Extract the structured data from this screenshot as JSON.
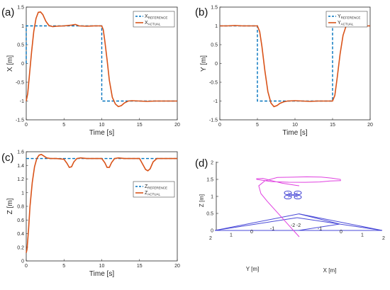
{
  "colors": {
    "reference": "#0072BD",
    "actual": "#D95319",
    "axis": "#262626",
    "frame_3d": "#4a4ad8",
    "path_3d": "#e040e0"
  },
  "chart_data": [
    {
      "id": "a",
      "panel_label": "(a)",
      "type": "line",
      "xlabel": "Time [s]",
      "ylabel": "X [m]",
      "xlim": [
        0,
        20
      ],
      "ylim": [
        -1.5,
        1.5
      ],
      "xticks": [
        0,
        5,
        10,
        15,
        20
      ],
      "yticks": [
        -1.5,
        -1,
        -0.5,
        0,
        0.5,
        1,
        1.5
      ],
      "xtick_labels": [
        "0",
        "5",
        "10",
        "15",
        "20"
      ],
      "ytick_labels": [
        "-1.5",
        "-1",
        "-0.5",
        "0",
        "0.5",
        "1",
        "1.5"
      ],
      "legend": {
        "placement": "top-right",
        "reference": {
          "main": "X",
          "sub": "REFERENCE"
        },
        "actual": {
          "main": "X",
          "sub": "ACTUAL"
        }
      },
      "series": [
        {
          "name": "X_REFERENCE",
          "style": "dashed",
          "x": [
            0,
            0,
            10,
            10,
            20
          ],
          "y": [
            0,
            1,
            1,
            -1,
            -1
          ]
        },
        {
          "name": "X_ACTUAL",
          "style": "solid",
          "x": [
            0,
            0.2,
            0.4,
            0.7,
            1.0,
            1.3,
            1.6,
            1.9,
            2.2,
            2.6,
            3.0,
            3.5,
            4.0,
            5.0,
            6.0,
            6.5,
            7.0,
            8.0,
            9.0,
            10.0,
            10.2,
            10.4,
            10.7,
            11.0,
            11.4,
            11.8,
            12.2,
            12.6,
            13.0,
            13.5,
            14.0,
            15.0,
            16.0,
            17.0,
            18.0,
            19.0,
            20.0
          ],
          "y": [
            -1.0,
            -0.8,
            -0.35,
            0.3,
            0.85,
            1.2,
            1.36,
            1.37,
            1.3,
            1.12,
            1.01,
            0.98,
            0.99,
            1.0,
            1.02,
            1.04,
            1.0,
            0.99,
            1.0,
            1.0,
            0.9,
            0.6,
            0.1,
            -0.45,
            -0.9,
            -1.08,
            -1.15,
            -1.12,
            -1.05,
            -1.0,
            -0.99,
            -1.0,
            -1.01,
            -1.0,
            -1.0,
            -1.0,
            -1.0
          ]
        }
      ]
    },
    {
      "id": "b",
      "panel_label": "(b)",
      "type": "line",
      "xlabel": "Time [s]",
      "ylabel": "Y [m]",
      "xlim": [
        0,
        20
      ],
      "ylim": [
        -1.5,
        1.5
      ],
      "xticks": [
        0,
        5,
        10,
        15,
        20
      ],
      "yticks": [
        -1.5,
        -1,
        -0.5,
        0,
        0.5,
        1,
        1.5
      ],
      "xtick_labels": [
        "0",
        "5",
        "10",
        "15",
        "20"
      ],
      "ytick_labels": [
        "-1.5",
        "-1",
        "-0.5",
        "0",
        "0.5",
        "1",
        "1.5"
      ],
      "legend": {
        "placement": "top-right",
        "reference": {
          "main": "Y",
          "sub": "REFERENCE"
        },
        "actual": {
          "main": "Y",
          "sub": "ACTUAL"
        }
      },
      "series": [
        {
          "name": "Y_REFERENCE",
          "style": "dashed",
          "x": [
            0,
            5,
            5,
            15,
            15,
            20
          ],
          "y": [
            1,
            1,
            -1,
            -1,
            1,
            1
          ]
        },
        {
          "name": "Y_ACTUAL",
          "style": "solid",
          "x": [
            0,
            1,
            2,
            3,
            4,
            5.0,
            5.3,
            5.6,
            6.0,
            6.4,
            6.8,
            7.2,
            7.6,
            8.0,
            8.5,
            9.0,
            10.0,
            11.0,
            12.0,
            13.0,
            14.0,
            15.0,
            15.3,
            15.6,
            16.0,
            16.4,
            16.8,
            17.2,
            17.6,
            18.0,
            18.5,
            19.0,
            20.0
          ],
          "y": [
            1.0,
            1.0,
            1.01,
            1.0,
            1.0,
            1.0,
            0.85,
            0.45,
            -0.2,
            -0.75,
            -1.05,
            -1.15,
            -1.12,
            -1.06,
            -1.02,
            -1.0,
            -0.99,
            -1.0,
            -1.01,
            -1.0,
            -1.0,
            -1.0,
            -0.85,
            -0.4,
            0.25,
            0.75,
            1.0,
            1.08,
            1.05,
            1.01,
            1.0,
            1.0,
            1.0
          ]
        }
      ]
    },
    {
      "id": "c",
      "panel_label": "(c)",
      "type": "line",
      "xlabel": "Time [s]",
      "ylabel": "Z [m]",
      "xlim": [
        0,
        20
      ],
      "ylim": [
        0,
        1.6
      ],
      "xticks": [
        0,
        5,
        10,
        15,
        20
      ],
      "yticks": [
        0,
        0.2,
        0.4,
        0.6,
        0.8,
        1,
        1.2,
        1.4,
        1.6
      ],
      "xtick_labels": [
        "0",
        "5",
        "10",
        "15",
        "20"
      ],
      "ytick_labels": [
        "0",
        "0.2",
        "0.4",
        "0.6",
        "0.8",
        "1",
        "1.2",
        "1.4",
        "1.6"
      ],
      "legend": {
        "placement": "right",
        "reference": {
          "main": "Z",
          "sub": "REFERENCE"
        },
        "actual": {
          "main": "Z",
          "sub": "ACTUAL"
        }
      },
      "series": [
        {
          "name": "Z_REFERENCE",
          "style": "dashed",
          "x": [
            0,
            20
          ],
          "y": [
            1.5,
            1.5
          ]
        },
        {
          "name": "Z_ACTUAL",
          "style": "solid",
          "x": [
            0,
            0.1,
            0.3,
            0.5,
            0.8,
            1.1,
            1.4,
            1.7,
            2.0,
            2.3,
            2.7,
            3.2,
            4.0,
            5.0,
            5.4,
            5.7,
            6.0,
            6.3,
            6.7,
            7.2,
            8.0,
            9.0,
            10.0,
            10.4,
            10.7,
            11.0,
            11.3,
            11.7,
            12.2,
            13.0,
            14.0,
            15.0,
            15.4,
            15.8,
            16.1,
            16.4,
            16.8,
            17.3,
            18.0,
            19.0,
            20.0
          ],
          "y": [
            0.12,
            0.17,
            0.45,
            0.8,
            1.15,
            1.38,
            1.5,
            1.55,
            1.56,
            1.54,
            1.51,
            1.5,
            1.5,
            1.49,
            1.43,
            1.37,
            1.38,
            1.45,
            1.5,
            1.51,
            1.5,
            1.5,
            1.5,
            1.44,
            1.37,
            1.37,
            1.44,
            1.5,
            1.51,
            1.5,
            1.5,
            1.5,
            1.42,
            1.34,
            1.32,
            1.35,
            1.45,
            1.5,
            1.5,
            1.5,
            1.5
          ]
        }
      ]
    },
    {
      "id": "d",
      "panel_label": "(d)",
      "type": "line",
      "xlabel": "X [m]",
      "ylabel": "Y [m]",
      "zlabel": "Z [m]",
      "xlim": [
        -2,
        2
      ],
      "ylim": [
        -2,
        2
      ],
      "zlim": [
        0,
        2
      ],
      "zticks": [
        0,
        0.5,
        1,
        1.5,
        2
      ],
      "ztick_labels": [
        "0",
        "0.5",
        "1",
        "1.5",
        "2"
      ],
      "xticks": [
        -2,
        -1,
        0,
        1,
        2
      ],
      "xtick_labels": [
        "-2",
        "-1",
        "0",
        "1",
        "2"
      ],
      "yticks": [
        -2,
        -1,
        0,
        1,
        2
      ],
      "ytick_labels": [
        "-2",
        "-1",
        "0",
        "1",
        "2"
      ],
      "frame_points": [
        [
          -2,
          2,
          0
        ],
        [
          2,
          -2,
          0
        ],
        [
          -2,
          -2,
          0
        ],
        [
          0,
          0,
          0
        ],
        [
          0.6,
          0.6,
          0.6
        ],
        [
          0,
          -2,
          0
        ]
      ],
      "trajectory": {
        "x": [
          1.0,
          0.5,
          0.0,
          -0.5,
          -0.8,
          -1.0,
          -1.0,
          -0.8,
          -0.5,
          -0.2,
          0.2,
          0.6,
          1.0,
          1.2,
          1.0,
          0.9,
          0.6,
          0.2,
          -0.3,
          -0.7,
          -1.0,
          -1.1,
          -1.0,
          -0.6,
          -0.2,
          0.2,
          0.6,
          0.9,
          1.0
        ],
        "y": [
          1.0,
          1.0,
          1.0,
          1.0,
          1.0,
          0.9,
          0.6,
          0.2,
          -0.2,
          -0.6,
          -0.9,
          -1.0,
          -1.0,
          -0.8,
          -0.5,
          -0.1,
          0.3,
          0.7,
          1.0,
          1.0,
          1.0,
          0.9,
          0.7,
          0.8,
          0.9,
          1.0,
          1.0,
          1.0,
          1.0
        ],
        "z": [
          0.0,
          0.3,
          0.6,
          0.9,
          1.1,
          1.3,
          1.42,
          1.5,
          1.5,
          1.5,
          1.5,
          1.5,
          1.5,
          1.5,
          1.5,
          1.5,
          1.5,
          1.5,
          1.5,
          1.5,
          1.5,
          1.5,
          1.5,
          1.5,
          1.5,
          1.5,
          1.5,
          1.5,
          1.5
        ]
      }
    }
  ]
}
